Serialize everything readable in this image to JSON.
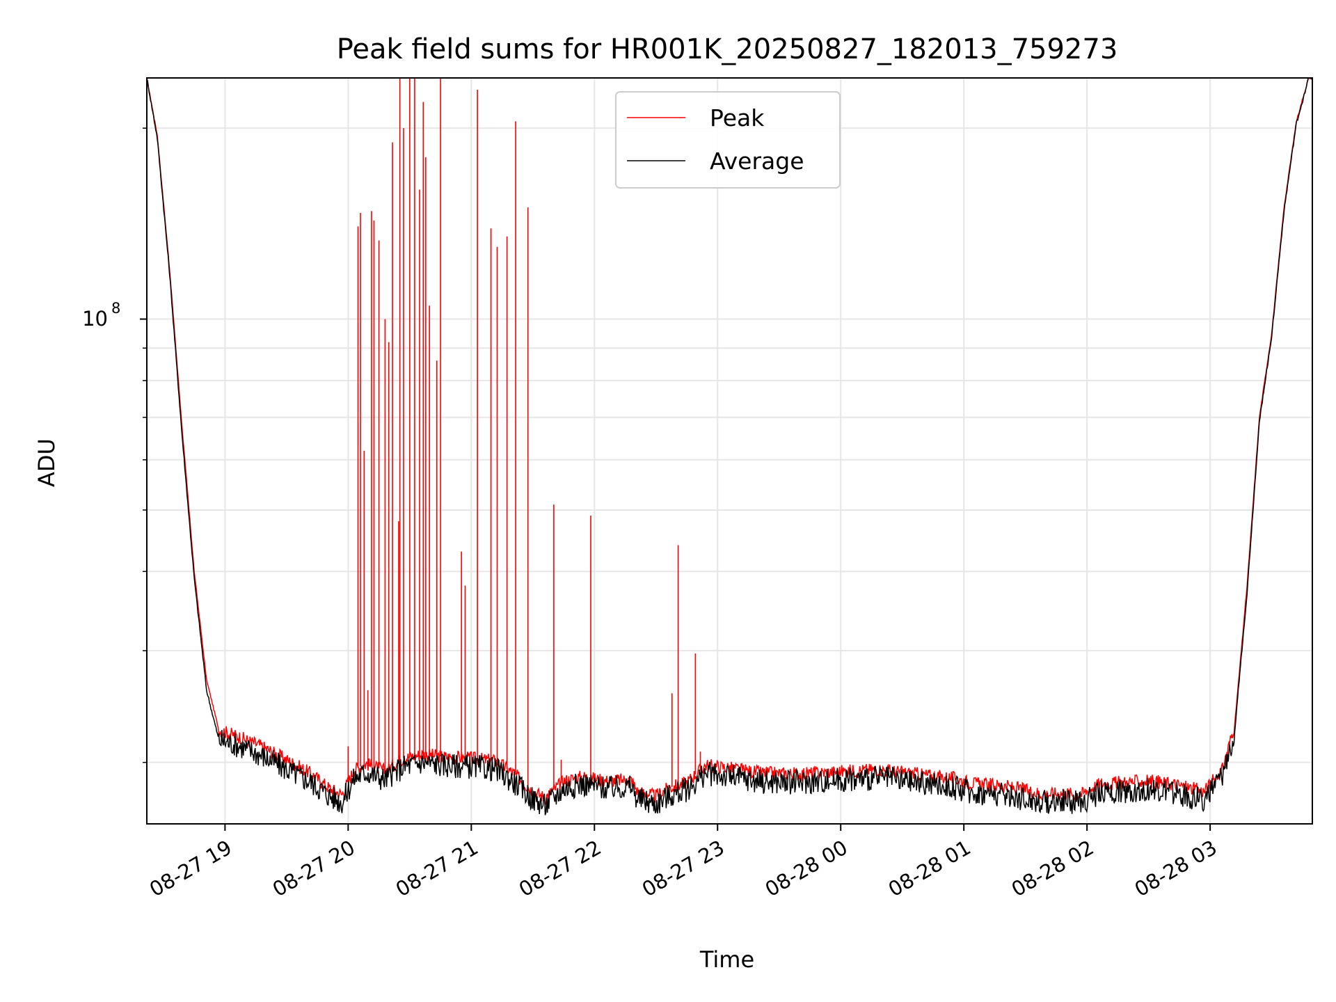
{
  "chart_data": {
    "type": "line",
    "title": "Peak field sums for HR001K_20250827_182013_759273",
    "xlabel": "Time",
    "ylabel": "ADU",
    "y_scale": "log",
    "y_tick_label_base": "10",
    "y_tick_label_exp": "8",
    "y_major_tick": 100000000,
    "x_tick_labels": [
      "08-27 19",
      "08-27 20",
      "08-27 21",
      "08-27 22",
      "08-27 23",
      "08-28 00",
      "08-28 01",
      "08-28 02",
      "08-28 03"
    ],
    "x_tick_values": [
      19,
      20,
      21,
      22,
      23,
      24,
      25,
      26,
      27
    ],
    "xlim": [
      18.365,
      27.83
    ],
    "ylim": [
      16000000,
      240000000
    ],
    "grid": true,
    "legend_position": "top-center",
    "series": [
      {
        "name": "Peak",
        "color": "#ff0000",
        "x": [
          18.365,
          18.45,
          18.55,
          18.65,
          18.75,
          18.85,
          18.95,
          19.1,
          19.3,
          19.5,
          19.7,
          19.85,
          19.95,
          20.05,
          20.15,
          20.3,
          20.45,
          20.6,
          20.8,
          21.0,
          21.2,
          21.35,
          21.5,
          21.6,
          21.75,
          21.9,
          22.1,
          22.3,
          22.35,
          22.5,
          22.6,
          22.75,
          22.9,
          23.1,
          23.3,
          23.5,
          23.7,
          23.9,
          24.1,
          24.3,
          24.5,
          24.7,
          24.9,
          25.1,
          25.3,
          25.5,
          25.65,
          25.8,
          25.95,
          26.1,
          26.3,
          26.5,
          26.7,
          26.85,
          26.95,
          27.1,
          27.2,
          27.3,
          27.4,
          27.5,
          27.6,
          27.7,
          27.8,
          27.83
        ],
        "y": [
          240000000,
          195000000,
          120000000,
          68000000,
          40000000,
          27000000,
          22500000,
          22000000,
          21200000,
          20200000,
          19200000,
          18200000,
          17800000,
          19500000,
          19900000,
          19400000,
          20300000,
          20600000,
          20400000,
          20300000,
          20100000,
          19200000,
          18000000,
          17600000,
          18700000,
          19000000,
          18700000,
          18800000,
          18000000,
          17700000,
          18200000,
          18600000,
          19800000,
          19600000,
          19300000,
          19200000,
          19200000,
          19300000,
          19400000,
          19500000,
          19300000,
          19100000,
          18900000,
          18500000,
          18400000,
          18100000,
          17800000,
          17900000,
          17800000,
          18500000,
          18600000,
          18700000,
          18500000,
          18200000,
          18000000,
          19500000,
          23000000,
          38000000,
          70000000,
          95000000,
          150000000,
          205000000,
          240000000,
          240000000
        ]
      },
      {
        "name": "Average",
        "color": "#000000",
        "x": [
          18.365,
          18.45,
          18.55,
          18.65,
          18.75,
          18.85,
          18.95,
          19.1,
          19.3,
          19.5,
          19.7,
          19.85,
          19.95,
          20.05,
          20.15,
          20.3,
          20.45,
          20.6,
          20.8,
          21.0,
          21.2,
          21.35,
          21.5,
          21.6,
          21.75,
          21.9,
          22.1,
          22.3,
          22.35,
          22.5,
          22.6,
          22.75,
          22.9,
          23.1,
          23.3,
          23.5,
          23.7,
          23.9,
          24.1,
          24.3,
          24.5,
          24.7,
          24.9,
          25.1,
          25.3,
          25.5,
          25.65,
          25.8,
          25.95,
          26.1,
          26.3,
          26.5,
          26.7,
          26.85,
          26.95,
          27.1,
          27.2,
          27.3,
          27.4,
          27.5,
          27.6,
          27.7,
          27.8,
          27.83
        ],
        "y": [
          240000000,
          193000000,
          118000000,
          66000000,
          39000000,
          26000000,
          21700000,
          21300000,
          20500000,
          19500000,
          18600000,
          17700000,
          17300000,
          18900000,
          19300000,
          18800000,
          19700000,
          20000000,
          19800000,
          19700000,
          19500000,
          18600000,
          17500000,
          17100000,
          18200000,
          18500000,
          18200000,
          18300000,
          17500000,
          17200000,
          17700000,
          18100000,
          19200000,
          19000000,
          18700000,
          18600000,
          18600000,
          18700000,
          18800000,
          18900000,
          18700000,
          18500000,
          18300000,
          17900000,
          17800000,
          17500000,
          17300000,
          17400000,
          17300000,
          17900000,
          18000000,
          18100000,
          17900000,
          17600000,
          17500000,
          18900000,
          22500000,
          37000000,
          69000000,
          94000000,
          148000000,
          203000000,
          240000000,
          240000000
        ]
      }
    ],
    "peak_spikes": {
      "x": [
        20.0,
        20.08,
        20.1,
        20.13,
        20.16,
        20.19,
        20.21,
        20.25,
        20.3,
        20.33,
        20.36,
        20.41,
        20.42,
        20.45,
        20.5,
        20.54,
        20.58,
        20.61,
        20.63,
        20.66,
        20.72,
        20.75,
        20.92,
        20.95,
        21.05,
        21.16,
        21.21,
        21.29,
        21.36,
        21.46,
        21.67,
        21.73,
        21.97,
        22.63,
        22.68,
        22.82,
        22.86
      ],
      "y": [
        21200000,
        140000000,
        147000000,
        62000000,
        26000000,
        148000000,
        143000000,
        133000000,
        100000000,
        92000000,
        190000000,
        48000000,
        240000000,
        200000000,
        240000000,
        240000000,
        160000000,
        220000000,
        180000000,
        105000000,
        86000000,
        240000000,
        43000000,
        38000000,
        230000000,
        139000000,
        130000000,
        135000000,
        205000000,
        150000000,
        51000000,
        20200000,
        49000000,
        25700000,
        44000000,
        29700000,
        20800000
      ]
    }
  }
}
